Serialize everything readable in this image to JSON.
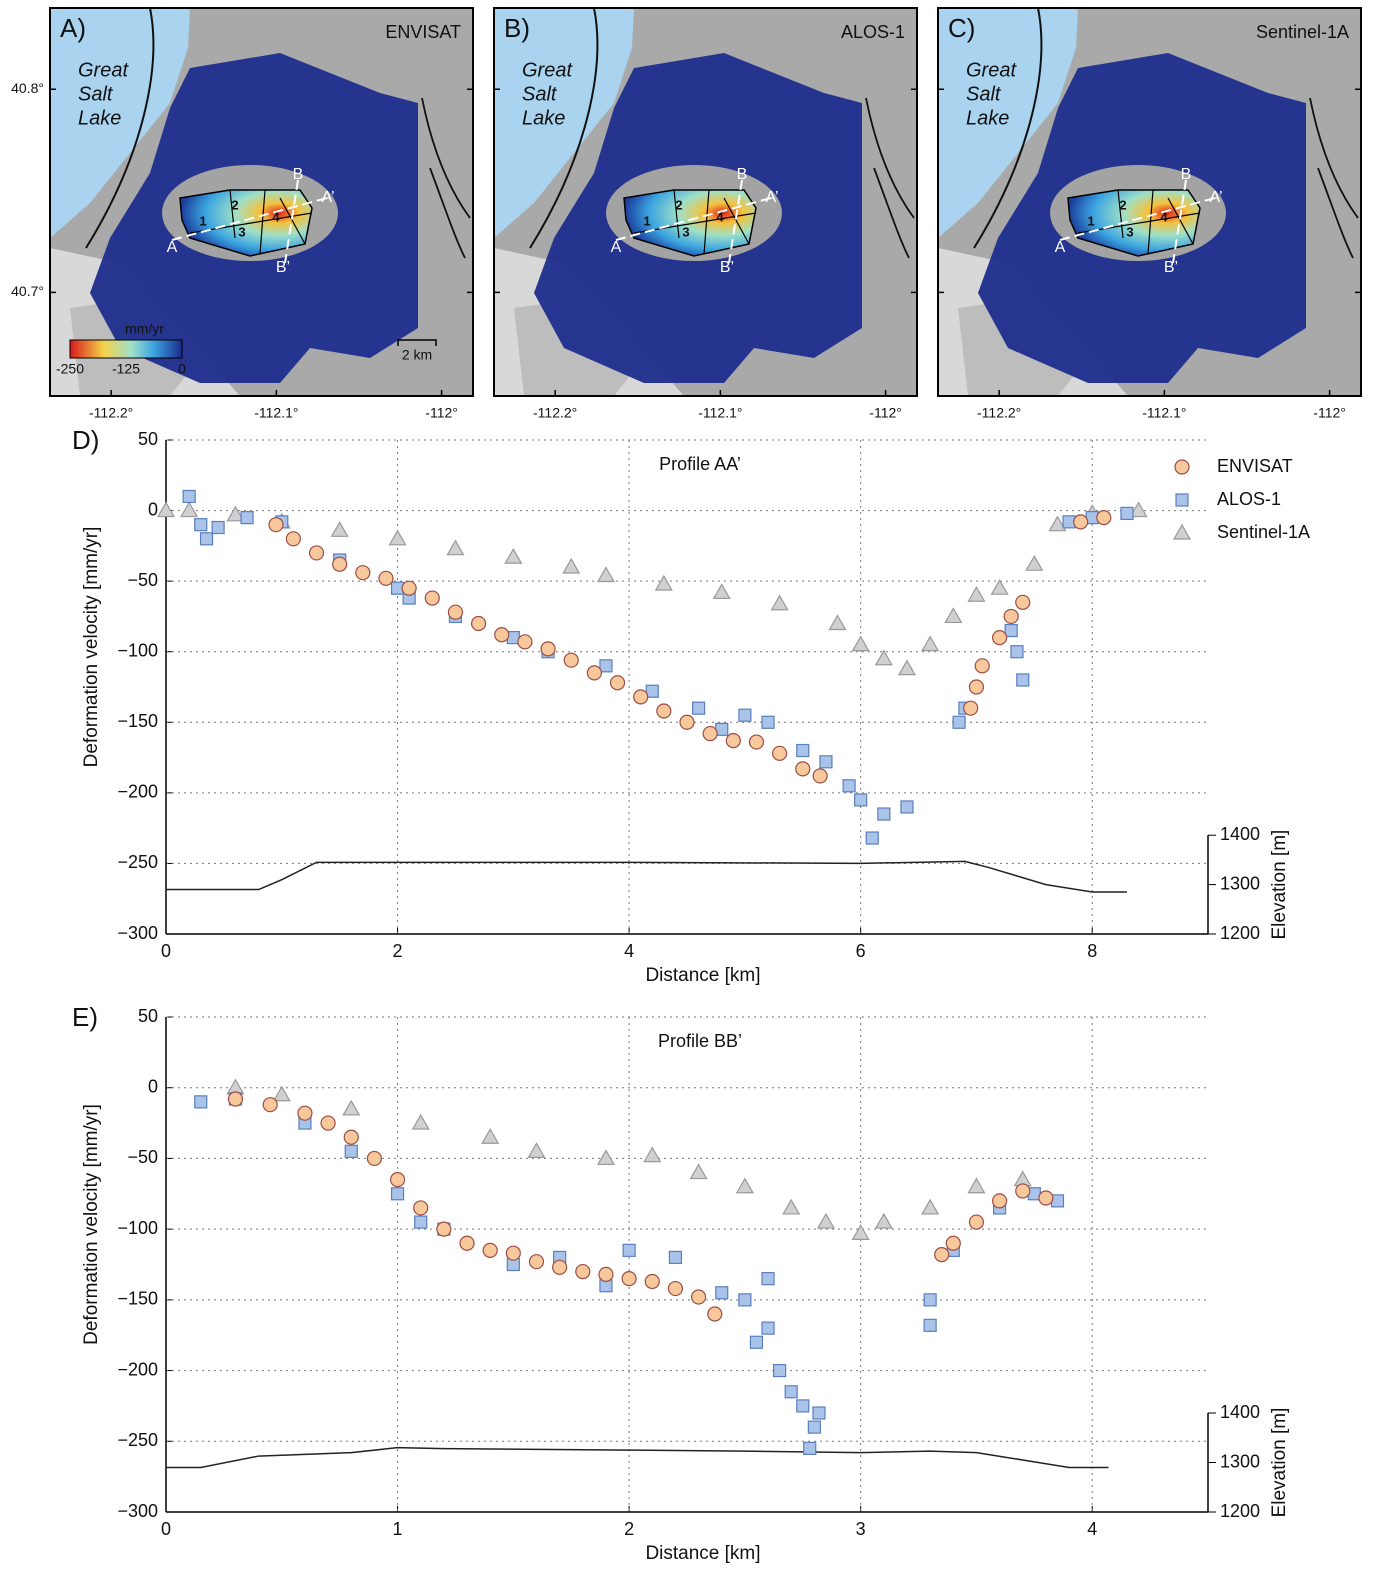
{
  "maps": {
    "panels": [
      {
        "label": "A)",
        "sensor": "ENVISAT"
      },
      {
        "label": "B)",
        "sensor": "ALOS-1"
      },
      {
        "label": "C)",
        "sensor": "Sentinel-1A"
      }
    ],
    "lake_label": [
      "Great",
      "Salt",
      "Lake"
    ],
    "region_labels": [
      "1",
      "2",
      "3",
      "4"
    ],
    "profile_labels": [
      "A",
      "A’",
      "B",
      "B’"
    ],
    "xlim": [
      -112.237,
      -111.981
    ],
    "ylim": [
      40.649,
      40.84
    ],
    "xticks": [
      {
        "value": -112.2,
        "label": "-112.2°"
      },
      {
        "value": -112.1,
        "label": "-112.1°"
      },
      {
        "value": -112,
        "label": "-112°"
      }
    ],
    "yticks": [
      {
        "value": 40.7,
        "label": "40.7°"
      },
      {
        "value": 40.8,
        "label": "40.8°"
      }
    ],
    "colorbar": {
      "unit": "mm/yr",
      "lim": [
        -250,
        0
      ],
      "ticks": [
        -250,
        -125,
        0
      ]
    },
    "scale_label": "2 km"
  },
  "chart_data": [
    {
      "type": "scatter",
      "panel": "D)",
      "title": "Profile AA’",
      "xlabel": "Distance [km]",
      "ylabel": "Deformation velocity [mm/yr]",
      "y2label": "Elevation [m]",
      "xlim": [
        0,
        9
      ],
      "xticks": [
        0,
        2,
        4,
        6,
        8
      ],
      "ylim": [
        -300,
        50
      ],
      "yticks": [
        {
          "value": -300,
          "label": "−300"
        },
        {
          "value": -250,
          "label": "−250"
        },
        {
          "value": -200,
          "label": "−200"
        },
        {
          "value": -150,
          "label": "−150"
        },
        {
          "value": -100,
          "label": "−100"
        },
        {
          "value": -50,
          "label": "−50"
        },
        0,
        50
      ],
      "y2lim": [
        1200,
        2200
      ],
      "y2ticks": [
        1200,
        1300,
        1400
      ],
      "grid": true,
      "legend": "upper right",
      "series": [
        {
          "name": "ENVISAT",
          "marker": "circle",
          "color": "#f7c89b",
          "edgecolor": "#9c4d45",
          "x": [
            0.95,
            1.1,
            1.3,
            1.5,
            1.7,
            1.9,
            2.1,
            2.3,
            2.5,
            2.7,
            2.9,
            3.1,
            3.3,
            3.5,
            3.7,
            3.9,
            4.1,
            4.3,
            4.5,
            4.7,
            4.9,
            5.1,
            5.3,
            5.5,
            5.65,
            6.95,
            7.0,
            7.05,
            7.2,
            7.3,
            7.4,
            7.9,
            8.1
          ],
          "values": [
            -10,
            -20,
            -30,
            -38,
            -44,
            -48,
            -55,
            -62,
            -72,
            -80,
            -88,
            -93,
            -98,
            -106,
            -115,
            -122,
            -132,
            -142,
            -150,
            -158,
            -163,
            -164,
            -172,
            -183,
            -188,
            -140,
            -125,
            -110,
            -90,
            -75,
            -65,
            -8,
            -5
          ]
        },
        {
          "name": "ALOS-1",
          "marker": "square",
          "color": "#a9c4e8",
          "edgecolor": "#5a7fbf",
          "x": [
            0.2,
            0.3,
            0.35,
            0.45,
            0.7,
            1.0,
            1.5,
            2.0,
            2.1,
            2.5,
            3.0,
            3.3,
            3.8,
            4.2,
            4.6,
            4.8,
            5.0,
            5.2,
            5.5,
            5.7,
            5.9,
            6.0,
            6.2,
            6.1,
            6.4,
            6.85,
            6.9,
            7.3,
            7.35,
            7.4,
            7.8,
            8.0,
            8.3
          ],
          "values": [
            10,
            -10,
            -20,
            -12,
            -5,
            -8,
            -35,
            -55,
            -62,
            -75,
            -90,
            -100,
            -110,
            -128,
            -140,
            -155,
            -145,
            -150,
            -170,
            -178,
            -195,
            -205,
            -215,
            -232,
            -210,
            -150,
            -140,
            -85,
            -100,
            -120,
            -8,
            -5,
            -2
          ]
        },
        {
          "name": "Sentinel-1A",
          "marker": "triangle",
          "color": "#d0d0d0",
          "edgecolor": "#999999",
          "x": [
            0.0,
            0.2,
            0.6,
            1.0,
            1.5,
            2.0,
            2.5,
            3.0,
            3.5,
            3.8,
            4.3,
            4.8,
            5.3,
            5.8,
            6.0,
            6.2,
            6.4,
            6.6,
            6.8,
            7.0,
            7.2,
            7.5,
            7.7,
            8.0,
            8.4
          ],
          "values": [
            0,
            0,
            -3,
            -8,
            -14,
            -20,
            -27,
            -33,
            -40,
            -46,
            -52,
            -58,
            -66,
            -80,
            -95,
            -105,
            -112,
            -95,
            -75,
            -60,
            -55,
            -38,
            -10,
            -2,
            0
          ]
        },
        {
          "marker": "line",
          "axis": "y2",
          "color": "#222222",
          "x": [
            0,
            0.8,
            1.0,
            1.3,
            2,
            4,
            6,
            6.9,
            7.1,
            7.6,
            8,
            8.3
          ],
          "values": [
            1290,
            1290,
            1310,
            1345,
            1345,
            1345,
            1343,
            1347,
            1335,
            1300,
            1285,
            1285
          ]
        }
      ]
    },
    {
      "type": "scatter",
      "panel": "E)",
      "title": "Profile BB’",
      "xlabel": "Distance [km]",
      "ylabel": "Deformation velocity [mm/yr]",
      "y2label": "Elevation [m]",
      "xlim": [
        0,
        4.5
      ],
      "xticks": [
        0,
        1,
        2,
        3,
        4
      ],
      "ylim": [
        -300,
        50
      ],
      "yticks": [
        {
          "value": -300,
          "label": "−300"
        },
        {
          "value": -250,
          "label": "−250"
        },
        {
          "value": -200,
          "label": "−200"
        },
        {
          "value": -150,
          "label": "−150"
        },
        {
          "value": -100,
          "label": "−100"
        },
        {
          "value": -50,
          "label": "−50"
        },
        0,
        50
      ],
      "y2lim": [
        1200,
        2200
      ],
      "y2ticks": [
        1200,
        1300,
        1400
      ],
      "grid": true,
      "series": [
        {
          "marker": "circle",
          "color": "#f7c89b",
          "edgecolor": "#9c4d45",
          "x": [
            0.3,
            0.45,
            0.6,
            0.7,
            0.8,
            0.9,
            1.0,
            1.1,
            1.2,
            1.3,
            1.4,
            1.5,
            1.6,
            1.7,
            1.8,
            1.9,
            2.0,
            2.1,
            2.2,
            2.3,
            2.37,
            3.35,
            3.4,
            3.5,
            3.6,
            3.7,
            3.8
          ],
          "values": [
            -8,
            -12,
            -18,
            -25,
            -35,
            -50,
            -65,
            -85,
            -100,
            -110,
            -115,
            -117,
            -123,
            -127,
            -130,
            -132,
            -135,
            -137,
            -142,
            -148,
            -160,
            -118,
            -110,
            -95,
            -80,
            -73,
            -78
          ]
        },
        {
          "marker": "square",
          "color": "#a9c4e8",
          "edgecolor": "#5a7fbf",
          "x": [
            0.15,
            0.3,
            0.6,
            0.8,
            1.0,
            1.1,
            1.2,
            1.5,
            1.7,
            1.9,
            2.0,
            2.2,
            2.4,
            2.5,
            2.6,
            2.55,
            2.6,
            2.65,
            2.7,
            2.75,
            2.8,
            2.78,
            2.82,
            3.3,
            3.3,
            3.4,
            3.6,
            3.75,
            3.85
          ],
          "values": [
            -10,
            -8,
            -25,
            -45,
            -75,
            -95,
            -100,
            -125,
            -120,
            -140,
            -115,
            -120,
            -145,
            -150,
            -135,
            -180,
            -170,
            -200,
            -215,
            -225,
            -240,
            -255,
            -230,
            -150,
            -168,
            -115,
            -85,
            -75,
            -80
          ]
        },
        {
          "marker": "triangle",
          "color": "#d0d0d0",
          "edgecolor": "#999999",
          "x": [
            0.3,
            0.5,
            0.8,
            1.1,
            1.4,
            1.6,
            1.9,
            2.1,
            2.3,
            2.5,
            2.7,
            2.85,
            3.0,
            3.1,
            3.3,
            3.5,
            3.7
          ],
          "values": [
            0,
            -5,
            -15,
            -25,
            -35,
            -45,
            -50,
            -48,
            -60,
            -70,
            -85,
            -95,
            -103,
            -95,
            -85,
            -70,
            -65
          ]
        },
        {
          "marker": "line",
          "axis": "y2",
          "color": "#222222",
          "x": [
            0,
            0.15,
            0.4,
            0.8,
            1.0,
            1.2,
            2,
            2.5,
            3.0,
            3.3,
            3.5,
            3.7,
            3.9,
            4.07
          ],
          "values": [
            1290,
            1290,
            1313,
            1320,
            1330,
            1328,
            1325,
            1323,
            1320,
            1323,
            1320,
            1305,
            1290,
            1290
          ]
        }
      ]
    }
  ]
}
